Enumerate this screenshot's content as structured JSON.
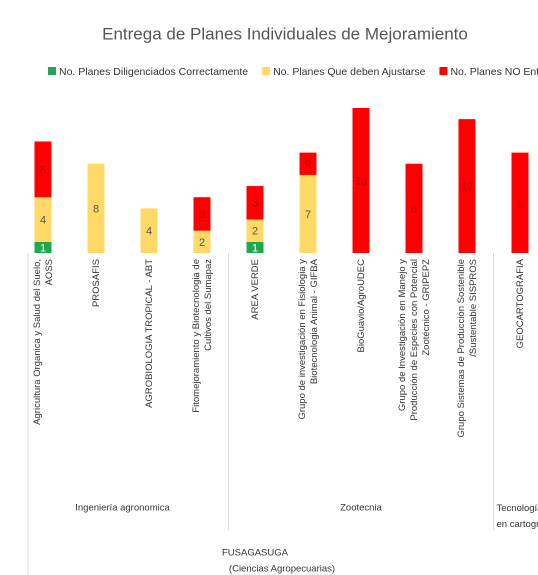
{
  "chart_data": {
    "type": "stacked-bar",
    "title": "Entrega de Planes Individuales de Mejoramiento",
    "categories": [
      "Agricultura Organica y Salud del Suelo, AOSS",
      "PROSAFIS",
      "AGROBIOLOGIA TROPICAL - ABT",
      "Fitomejoramiento y Biotecnologia de Cultivos del Sumapaz",
      "AREA VERDE",
      "Grupo de investigación en Fisiologia y Biotecnologia Animal - GIFBA",
      "BioGuavio/AgroUDEC",
      "Grupo de Investigación en Manejo y Producción de Especies con Potencial Zootécnico - GRIPEPZ",
      "Grupo Sistemas de Producción Sostenible /Sustentable SISPROS",
      "GEOCARTOGRAFIA"
    ],
    "series": [
      {
        "name": "No. Planes Diligenciados Correctamente",
        "color": "#1fa84f",
        "label_color": "#ffffff",
        "values": [
          1,
          null,
          null,
          null,
          1,
          null,
          null,
          null,
          null,
          null
        ]
      },
      {
        "name": "No. Planes Que deben Ajustarse",
        "color": "#ffd966",
        "label_color": "#555555",
        "values": [
          4,
          8,
          4,
          2,
          2,
          7,
          null,
          null,
          null,
          null
        ]
      },
      {
        "name": "No. Planes NO Entregados",
        "color": "#ff0000",
        "label_color": "#b00000",
        "values": [
          5,
          null,
          null,
          3,
          3,
          2,
          13,
          8,
          12,
          9
        ]
      }
    ],
    "groups": [
      {
        "label": "Ingeniería agronomica",
        "start": 0,
        "end": 3
      },
      {
        "label": "Zootecnia",
        "start": 4,
        "end": 8
      },
      {
        "label": "Tecnología en cartografía",
        "start": 9,
        "end": 9
      }
    ],
    "top_group": {
      "label": "FUSAGASUGA",
      "sublabel": "(Ciencias Agropecuarias)"
    },
    "ylim": [
      0,
      13
    ]
  }
}
